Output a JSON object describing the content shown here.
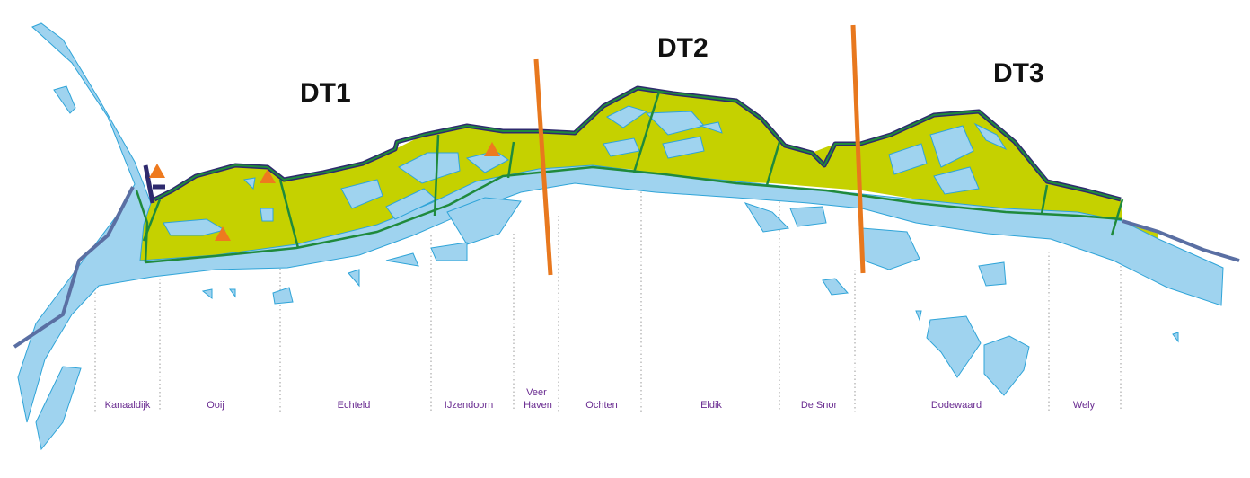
{
  "zones": [
    {
      "id": "dt1",
      "label": "DT1"
    },
    {
      "id": "dt2",
      "label": "DT2"
    },
    {
      "id": "dt3",
      "label": "DT3"
    }
  ],
  "segments": [
    {
      "id": "kanaaldijk",
      "label": "Kanaaldijk"
    },
    {
      "id": "ooij",
      "label": "Ooij"
    },
    {
      "id": "echteld",
      "label": "Echteld"
    },
    {
      "id": "ijzendoorn",
      "label": "IJzendoorn"
    },
    {
      "id": "veer-haven",
      "label": "Veer Haven",
      "lines": [
        "Veer",
        "Haven"
      ]
    },
    {
      "id": "ochten",
      "label": "Ochten"
    },
    {
      "id": "eldik",
      "label": "Eldik"
    },
    {
      "id": "de-snor",
      "label": "De Snor"
    },
    {
      "id": "dodewaard",
      "label": "Dodewaard"
    },
    {
      "id": "wely",
      "label": "Wely"
    }
  ],
  "markers": {
    "count": 4,
    "icon": "orange-triangle-icon"
  },
  "colors": {
    "water": "#9fd3ef",
    "water_outline": "#2fa4d8",
    "floodplain": "#c5d100",
    "dike": "#2e2a6e",
    "section_lines": "#1f8a3c",
    "zone_divider": "#e8781e",
    "marker": "#ee7a1f",
    "segment_text": "#6a2c91",
    "road": "#5a6fa3"
  }
}
